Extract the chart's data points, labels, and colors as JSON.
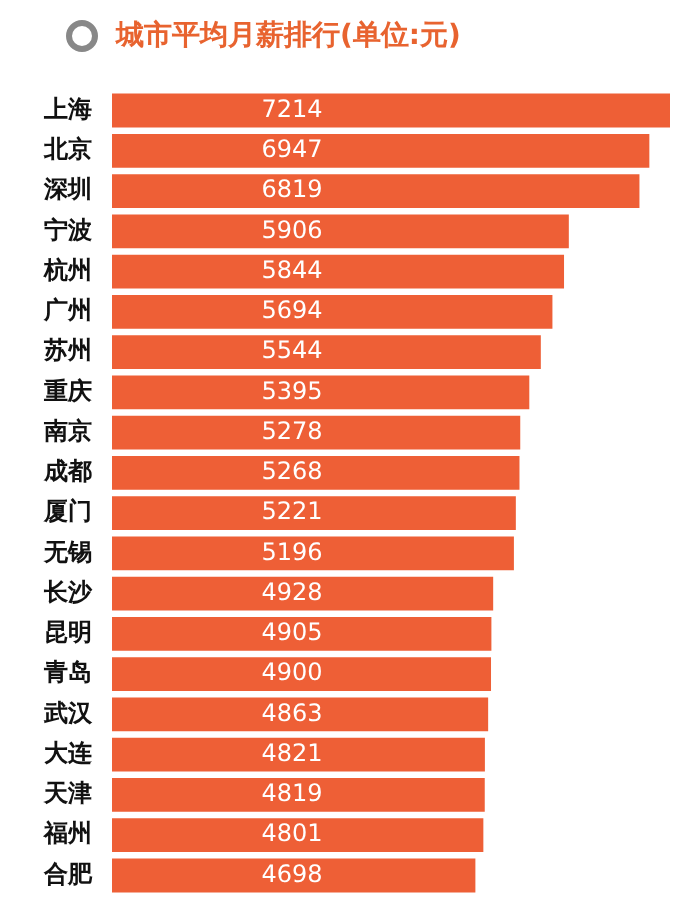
{
  "chart_data": {
    "type": "bar",
    "orientation": "horizontal",
    "title": "城市平均月薪排行(单位:元)",
    "categories": [
      "上海",
      "北京",
      "深圳",
      "宁波",
      "杭州",
      "广州",
      "苏州",
      "重庆",
      "南京",
      "成都",
      "厦门",
      "无锡",
      "长沙",
      "昆明",
      "青岛",
      "武汉",
      "大连",
      "天津",
      "福州",
      "合肥"
    ],
    "values": [
      7214,
      6947,
      6819,
      5906,
      5844,
      5694,
      5544,
      5395,
      5278,
      5268,
      5221,
      5196,
      4928,
      4905,
      4900,
      4863,
      4821,
      4819,
      4801,
      4698
    ],
    "color": "#ee5f36",
    "data_labels": true,
    "legend": false
  }
}
